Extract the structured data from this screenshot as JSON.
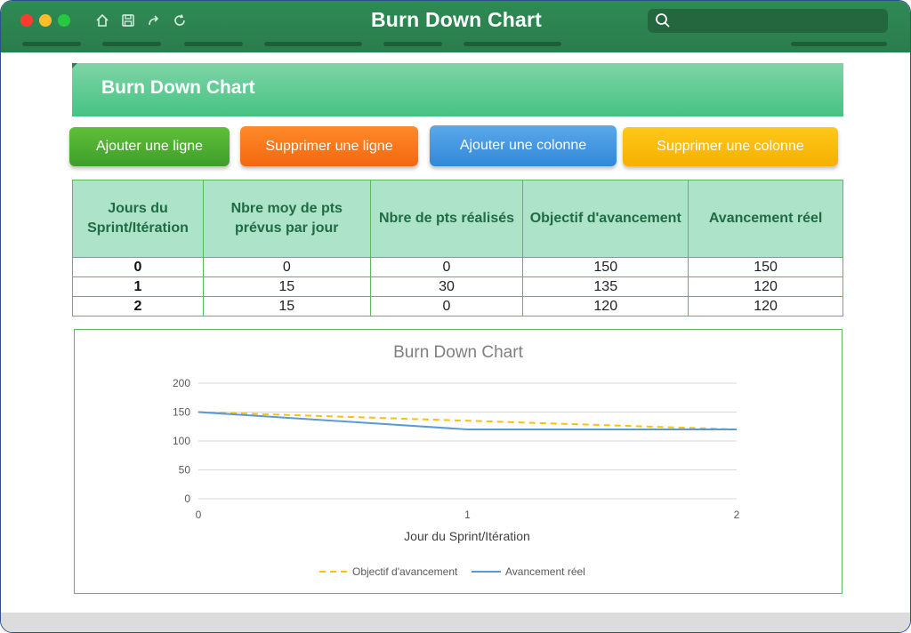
{
  "window": {
    "title": "Burn Down Chart"
  },
  "banner": {
    "title": "Burn Down Chart"
  },
  "buttons": {
    "add_row": "Ajouter une ligne",
    "delete_row": "Supprimer une ligne",
    "add_column": "Ajouter une colonne",
    "delete_column": "Supprimer une colonne"
  },
  "table": {
    "headers": [
      "Jours du Sprint/Itération",
      "Nbre moy de pts prévus par jour",
      "Nbre de pts réalisés",
      "Objectif d'avancement",
      "Avancement réel"
    ],
    "rows": [
      [
        "0",
        "0",
        "0",
        "150",
        "150"
      ],
      [
        "1",
        "15",
        "30",
        "135",
        "120"
      ],
      [
        "2",
        "15",
        "0",
        "120",
        "120"
      ]
    ]
  },
  "colors": {
    "titlebar": "#2a7d4c",
    "objective_line": "#ffc000",
    "actual_line": "#5b9bd5"
  },
  "chart_data": {
    "type": "line",
    "title": "Burn Down Chart",
    "xlabel": "Jour du Sprint/Itération",
    "ylabel": "",
    "x": [
      0,
      1,
      2
    ],
    "x_ticks": [
      "0",
      "1",
      "2"
    ],
    "y_ticks": [
      "0",
      "50",
      "100",
      "150",
      "200"
    ],
    "ylim": [
      0,
      200
    ],
    "grid": true,
    "legend": "bottom",
    "series": [
      {
        "name": "Objectif d'avancement",
        "values": [
          150,
          135,
          120
        ],
        "style": "dashed",
        "color": "#ffc000"
      },
      {
        "name": "Avancement réel",
        "values": [
          150,
          120,
          120
        ],
        "style": "solid",
        "color": "#5b9bd5"
      }
    ]
  }
}
